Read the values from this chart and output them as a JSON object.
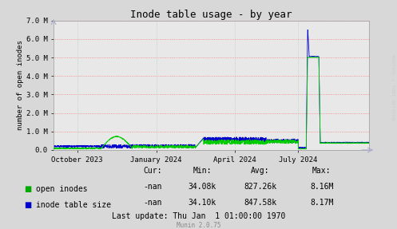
{
  "title": "Inode table usage - by year",
  "ylabel": "number of open inodes",
  "bg_color": "#d8d8d8",
  "plot_bg_color": "#e8e8e8",
  "grid_color_h": "#ff6666",
  "grid_color_v": "#aabbaa",
  "y_tick_labels": [
    "0.0",
    "1.0 M",
    "2.0 M",
    "3.0 M",
    "4.0 M",
    "5.0 M",
    "6.0 M",
    "7.0 M"
  ],
  "ylim": [
    0,
    7.0
  ],
  "x_tick_labels": [
    "October 2023",
    "January 2024",
    "April 2024",
    "July 2024"
  ],
  "legend": [
    "open inodes",
    "inode table size"
  ],
  "legend_colors": [
    "#00aa00",
    "#0000cc"
  ],
  "stats_header": [
    "Cur:",
    "Min:",
    "Avg:",
    "Max:"
  ],
  "stats_row1": [
    "-nan",
    "34.08k",
    "827.26k",
    "8.16M"
  ],
  "stats_row2": [
    "-nan",
    "34.10k",
    "847.58k",
    "8.17M"
  ],
  "last_update": "Last update: Thu Jan  1 01:00:00 1970",
  "munin_version": "Munin 2.0.75",
  "rrdtool_label": "RRDTOOL / TOBI OETIKER",
  "line1_color": "#00cc00",
  "line2_color": "#0000cc"
}
